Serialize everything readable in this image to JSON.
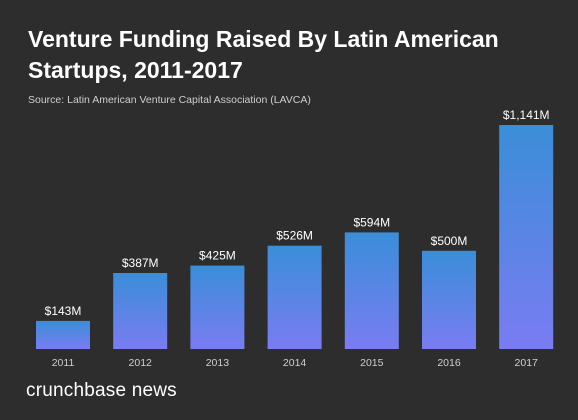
{
  "title": "Venture Funding Raised By Latin American Startups, 2011-2017",
  "source": "Source: Latin American Venture Capital Association (LAVCA)",
  "brand": "crunchbase news",
  "colors": {
    "background": "#2d2d2d",
    "bar_top": "#3a8ed8",
    "bar_bottom": "#7a7cf2",
    "text": "#ffffff",
    "tick_text": "#cfcfcf"
  },
  "chart_data": {
    "type": "bar",
    "categories": [
      "2011",
      "2012",
      "2013",
      "2014",
      "2015",
      "2016",
      "2017"
    ],
    "values": [
      143,
      387,
      425,
      526,
      594,
      500,
      1141
    ],
    "data_labels": [
      "$143M",
      "$387M",
      "$425M",
      "$526M",
      "$594M",
      "$500M",
      "$1,141M"
    ],
    "unit": "$M",
    "ylim": [
      0,
      1141
    ],
    "grid": false,
    "legend": "none"
  }
}
